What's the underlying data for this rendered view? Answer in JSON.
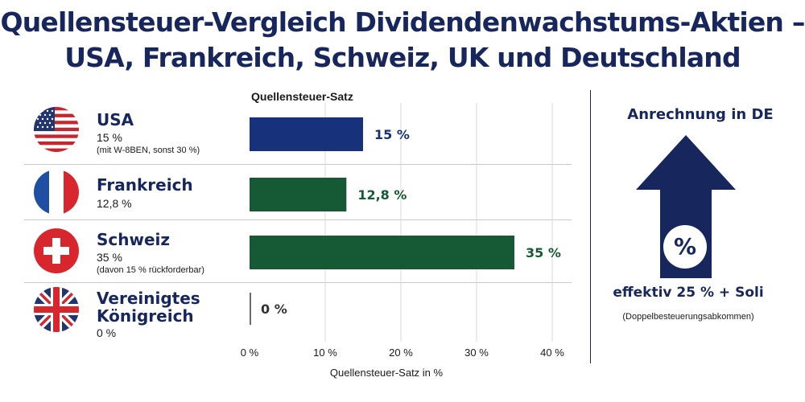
{
  "title_line1": "Quellensteuer-Vergleich Dividendenwachstums-Aktien –",
  "title_line2": "USA, Frankreich, Schweiz, UK und Deutschland",
  "chart_heading": "Quellensteuer-Satz",
  "countries": [
    {
      "name": "USA",
      "rate_text": "15 %",
      "note": "(mit W-8BEN, sonst 30 %)",
      "flag": "usa-flag-icon"
    },
    {
      "name": "Frankreich",
      "rate_text": "12,8 %",
      "note": "",
      "flag": "france-flag-icon"
    },
    {
      "name": "Schweiz",
      "rate_text": "35 %",
      "note": "(davon 15 % rückforderbar)",
      "flag": "switzerland-flag-icon"
    },
    {
      "name_line1": "Vereinigtes",
      "name_line2": "Königreich",
      "rate_text": "0 %",
      "note": "",
      "flag": "uk-flag-icon"
    }
  ],
  "chart_data": {
    "type": "bar",
    "orientation": "horizontal",
    "categories": [
      "USA",
      "Frankreich",
      "Schweiz",
      "Vereinigtes Königreich"
    ],
    "values": [
      15,
      12.8,
      35,
      0
    ],
    "bar_labels": [
      "15 %",
      "12,8 %",
      "35 %",
      "0 %"
    ],
    "colors": [
      "#17317a",
      "#155a34",
      "#155a34",
      "#6b6b6b"
    ],
    "label_colors": [
      "#17317a",
      "#155a34",
      "#155a34",
      "#333333"
    ],
    "title": "Quellensteuer-Satz",
    "xlabel": "Quellensteuer-Satz in %",
    "xlim": [
      0,
      40
    ],
    "xticks": [
      "0 %",
      "10 %",
      "20 %",
      "30 %",
      "40 %"
    ],
    "grid": true
  },
  "right_panel": {
    "title": "Anrechnung in DE",
    "symbol": "%",
    "effective": "effektiv 25 % + Soli",
    "note": "(Doppelbesteuerungsabkommen)",
    "arrow_color": "#17275e",
    "arrow_icon": "up-arrow-icon"
  }
}
